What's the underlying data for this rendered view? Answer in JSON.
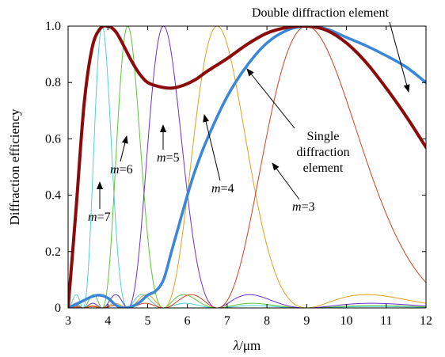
{
  "chart_data": {
    "type": "line",
    "title": "",
    "xlabel_italic": "λ",
    "xlabel_rest": "/μm",
    "ylabel": "Diffraction efficiency",
    "xlim": [
      3,
      12
    ],
    "ylim": [
      0,
      1.0
    ],
    "xticks": [
      "3",
      "4",
      "5",
      "6",
      "7",
      "8",
      "9",
      "10",
      "11",
      "12"
    ],
    "yticks": [
      "0",
      "0.2",
      "0.4",
      "0.6",
      "0.8",
      "1.0"
    ],
    "grid": false,
    "series": [
      {
        "kind": "single-order",
        "m": 7,
        "design_wavelength": 3.857,
        "color": "#4fd0d8",
        "width": 1
      },
      {
        "kind": "single-order",
        "m": 6,
        "design_wavelength": 4.5,
        "color": "#5ec43a",
        "width": 1
      },
      {
        "kind": "single-order",
        "m": 5,
        "design_wavelength": 5.4,
        "color": "#6a2fd6",
        "width": 1
      },
      {
        "kind": "single-order",
        "m": 4,
        "design_wavelength": 6.75,
        "color": "#e0a020",
        "width": 1
      },
      {
        "kind": "single-order",
        "m": 3,
        "design_wavelength": 9.0,
        "color": "#d2401e",
        "width": 1
      },
      {
        "kind": "single",
        "color": "#3a86d8",
        "width": 3.5,
        "x": [
          3.0,
          3.3,
          3.6,
          3.8,
          4.0,
          4.2,
          4.4,
          4.6,
          4.8,
          5.0,
          5.2,
          5.4,
          5.6,
          5.8,
          6.0,
          6.2,
          6.5,
          7.0,
          7.5,
          8.0,
          8.5,
          9.0,
          9.5,
          10.0,
          10.5,
          11.0,
          11.5,
          12.0
        ],
        "y": [
          0.0,
          0.02,
          0.04,
          0.045,
          0.035,
          0.01,
          0.0,
          0.005,
          0.02,
          0.045,
          0.06,
          0.1,
          0.2,
          0.3,
          0.4,
          0.49,
          0.6,
          0.75,
          0.86,
          0.94,
          0.985,
          1.0,
          0.99,
          0.96,
          0.93,
          0.895,
          0.855,
          0.8
        ]
      },
      {
        "kind": "double",
        "color": "#8b0a0a",
        "width": 4,
        "x": [
          3.0,
          3.2,
          3.4,
          3.6,
          3.8,
          4.0,
          4.2,
          4.4,
          4.6,
          4.8,
          5.0,
          5.3,
          5.6,
          5.9,
          6.2,
          6.5,
          7.0,
          7.5,
          8.0,
          8.5,
          9.0,
          9.5,
          10.0,
          10.5,
          11.0,
          11.5,
          12.0
        ],
        "y": [
          0.0,
          0.35,
          0.72,
          0.92,
          0.99,
          1.0,
          0.98,
          0.93,
          0.875,
          0.83,
          0.8,
          0.785,
          0.78,
          0.79,
          0.81,
          0.84,
          0.885,
          0.935,
          0.975,
          0.995,
          1.0,
          0.985,
          0.94,
          0.87,
          0.78,
          0.68,
          0.57
        ]
      }
    ],
    "annotations": {
      "double_label": "Double diffraction element",
      "single_label_line1": "Single",
      "single_label_line2": "diffraction",
      "single_label_line3": "element",
      "m_symbol": "m",
      "m7": "=7",
      "m6": "=6",
      "m5": "=5",
      "m4": "=4",
      "m3": "=3"
    }
  }
}
